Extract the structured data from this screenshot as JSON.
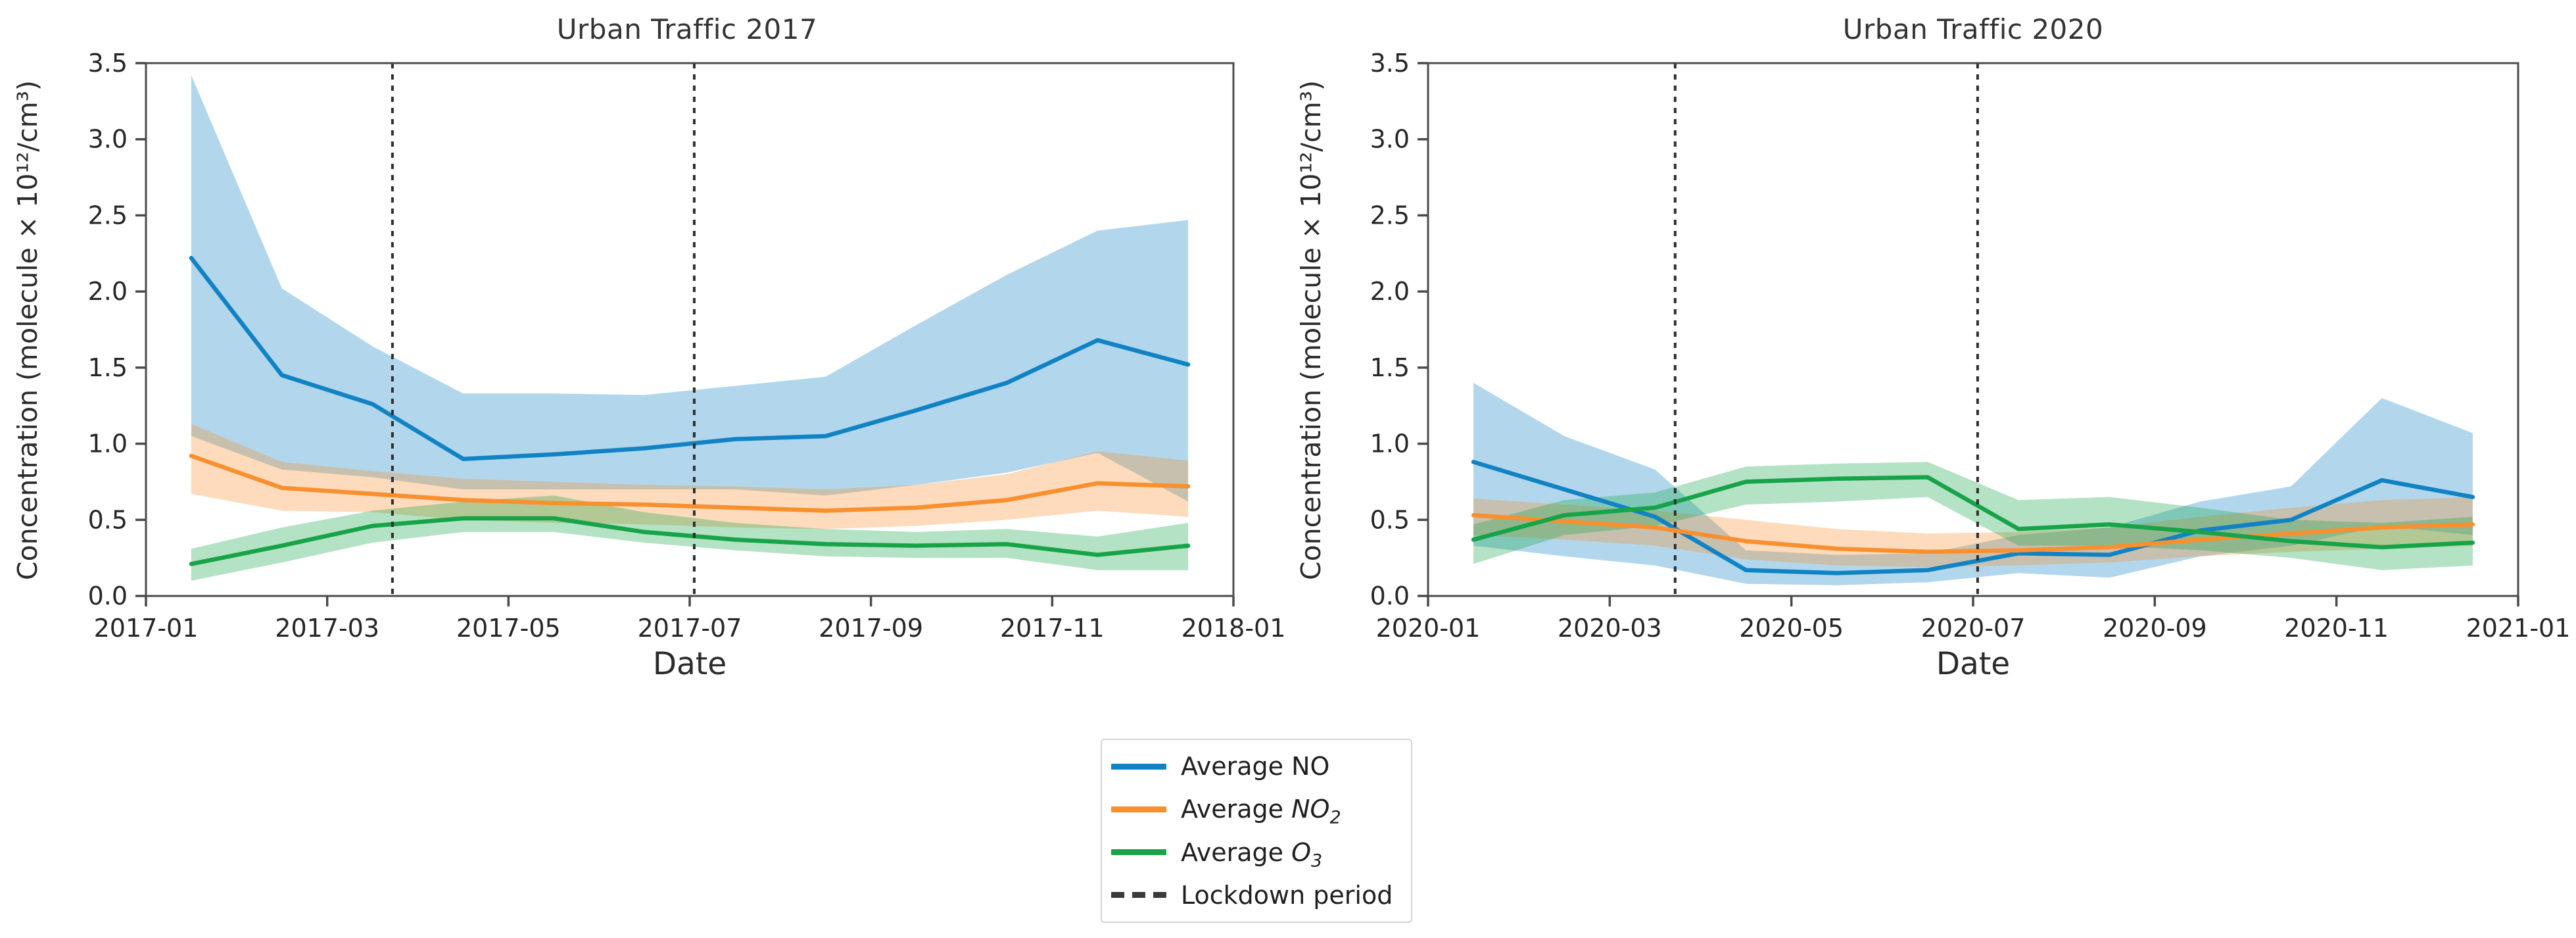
{
  "page": {
    "background": "#ffffff",
    "frame_color": "#4c4c4c",
    "tick_color": "#4a4a4a",
    "lockdown_line_color": "#2f2f2f"
  },
  "chart_data": [
    {
      "type": "line",
      "title": "Urban Traffic 2017",
      "xlabel": "Date",
      "ylabel": "Concentration (molecule × 10¹²/cm³)",
      "ylim": [
        0.0,
        3.5
      ],
      "ytick_labels": [
        "0.0",
        "0.5",
        "1.0",
        "1.5",
        "2.0",
        "2.5",
        "3.0",
        "3.5"
      ],
      "xlim_months": [
        0,
        12
      ],
      "xticks": [
        {
          "label": "2017-01",
          "month": 0
        },
        {
          "label": "2017-03",
          "month": 2
        },
        {
          "label": "2017-05",
          "month": 4
        },
        {
          "label": "2017-07",
          "month": 6
        },
        {
          "label": "2017-09",
          "month": 8
        },
        {
          "label": "2017-11",
          "month": 10
        },
        {
          "label": "2018-01",
          "month": 12
        }
      ],
      "grid": false,
      "lockdown_months": [
        2.72,
        6.05
      ],
      "x_months": [
        0.5,
        1.5,
        2.5,
        3.5,
        4.5,
        5.5,
        6.5,
        7.5,
        8.5,
        9.5,
        10.5,
        11.5
      ],
      "series": [
        {
          "name": "Average NO",
          "color": "#1183c4",
          "band_opacity": 0.32,
          "values": [
            2.22,
            1.45,
            1.26,
            0.9,
            0.93,
            0.97,
            1.03,
            1.05,
            1.22,
            1.4,
            1.68,
            1.52
          ],
          "upper": [
            3.42,
            2.02,
            1.64,
            1.33,
            1.33,
            1.32,
            1.38,
            1.44,
            1.78,
            2.11,
            2.4,
            2.47
          ],
          "lower": [
            1.05,
            0.83,
            0.78,
            0.7,
            0.7,
            0.7,
            0.7,
            0.66,
            0.73,
            0.81,
            0.94,
            0.62
          ]
        },
        {
          "name": "Average NO2",
          "color": "#f8902f",
          "band_opacity": 0.32,
          "values": [
            0.92,
            0.71,
            0.67,
            0.63,
            0.61,
            0.6,
            0.58,
            0.56,
            0.58,
            0.63,
            0.74,
            0.72
          ],
          "upper": [
            1.13,
            0.88,
            0.82,
            0.77,
            0.75,
            0.73,
            0.72,
            0.7,
            0.73,
            0.8,
            0.95,
            0.89
          ],
          "lower": [
            0.67,
            0.56,
            0.55,
            0.5,
            0.48,
            0.47,
            0.45,
            0.44,
            0.46,
            0.5,
            0.56,
            0.52
          ]
        },
        {
          "name": "Average O3",
          "color": "#17a449",
          "band_opacity": 0.32,
          "values": [
            0.21,
            0.33,
            0.46,
            0.51,
            0.51,
            0.42,
            0.37,
            0.34,
            0.33,
            0.34,
            0.27,
            0.33
          ],
          "upper": [
            0.31,
            0.45,
            0.56,
            0.62,
            0.66,
            0.55,
            0.48,
            0.44,
            0.42,
            0.44,
            0.39,
            0.48
          ],
          "lower": [
            0.1,
            0.22,
            0.35,
            0.42,
            0.42,
            0.35,
            0.3,
            0.26,
            0.25,
            0.25,
            0.17,
            0.17
          ]
        }
      ]
    },
    {
      "type": "line",
      "title": "Urban Traffic 2020",
      "xlabel": "Date",
      "ylabel": "Concentration (molecule × 10¹²/cm³)",
      "ylim": [
        0.0,
        3.5
      ],
      "ytick_labels": [
        "0.0",
        "0.5",
        "1.0",
        "1.5",
        "2.0",
        "2.5",
        "3.0",
        "3.5"
      ],
      "xlim_months": [
        0,
        12
      ],
      "xticks": [
        {
          "label": "2020-01",
          "month": 0
        },
        {
          "label": "2020-03",
          "month": 2
        },
        {
          "label": "2020-05",
          "month": 4
        },
        {
          "label": "2020-07",
          "month": 6
        },
        {
          "label": "2020-09",
          "month": 8
        },
        {
          "label": "2020-11",
          "month": 10
        },
        {
          "label": "2021-01",
          "month": 12
        }
      ],
      "grid": false,
      "lockdown_months": [
        2.72,
        6.05
      ],
      "x_months": [
        0.5,
        1.5,
        2.5,
        3.5,
        4.5,
        5.5,
        6.5,
        7.5,
        8.5,
        9.5,
        10.5,
        11.5
      ],
      "series": [
        {
          "name": "Average NO",
          "color": "#1183c4",
          "band_opacity": 0.32,
          "values": [
            0.88,
            0.7,
            0.52,
            0.17,
            0.15,
            0.17,
            0.28,
            0.27,
            0.43,
            0.5,
            0.76,
            0.65
          ],
          "upper": [
            1.4,
            1.05,
            0.83,
            0.3,
            0.27,
            0.28,
            0.4,
            0.45,
            0.62,
            0.72,
            1.3,
            1.07
          ],
          "lower": [
            0.33,
            0.26,
            0.2,
            0.08,
            0.07,
            0.09,
            0.15,
            0.12,
            0.26,
            0.33,
            0.46,
            0.4
          ]
        },
        {
          "name": "Average NO2",
          "color": "#f8902f",
          "band_opacity": 0.32,
          "values": [
            0.53,
            0.49,
            0.45,
            0.36,
            0.31,
            0.29,
            0.3,
            0.32,
            0.37,
            0.41,
            0.45,
            0.47
          ],
          "upper": [
            0.64,
            0.6,
            0.56,
            0.5,
            0.44,
            0.41,
            0.42,
            0.45,
            0.52,
            0.58,
            0.63,
            0.65
          ],
          "lower": [
            0.4,
            0.37,
            0.33,
            0.24,
            0.2,
            0.19,
            0.2,
            0.22,
            0.26,
            0.29,
            0.31,
            0.33
          ]
        },
        {
          "name": "Average O3",
          "color": "#17a449",
          "band_opacity": 0.32,
          "values": [
            0.37,
            0.53,
            0.58,
            0.75,
            0.77,
            0.78,
            0.44,
            0.47,
            0.42,
            0.36,
            0.32,
            0.35
          ],
          "upper": [
            0.47,
            0.63,
            0.68,
            0.85,
            0.87,
            0.88,
            0.63,
            0.65,
            0.58,
            0.5,
            0.48,
            0.52
          ],
          "lower": [
            0.21,
            0.4,
            0.46,
            0.6,
            0.62,
            0.65,
            0.33,
            0.33,
            0.3,
            0.25,
            0.17,
            0.2
          ]
        }
      ]
    }
  ],
  "legend": {
    "items": [
      {
        "type": "line",
        "color": "#1183c4",
        "prefix": "Average ",
        "formula": "NO",
        "sub": "",
        "italic": false
      },
      {
        "type": "line",
        "color": "#f8902f",
        "prefix": "Average ",
        "formula": "NO",
        "sub": "2",
        "italic": true
      },
      {
        "type": "line",
        "color": "#17a449",
        "prefix": "Average ",
        "formula": "O",
        "sub": "3",
        "italic": true
      },
      {
        "type": "dash",
        "color": "#3a3a3a",
        "prefix": "Lockdown period",
        "formula": "",
        "sub": "",
        "italic": false
      }
    ]
  }
}
